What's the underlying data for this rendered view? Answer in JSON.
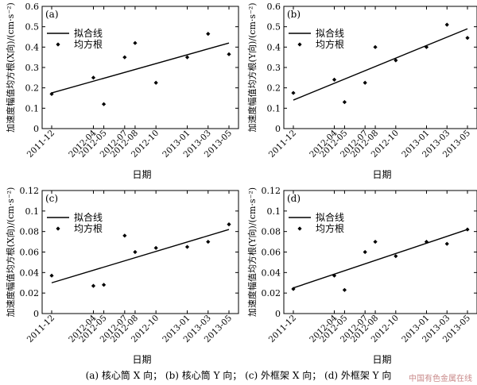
{
  "caption": "(a) 核心筒 X 向； (b) 核心筒 Y 向； (c) 外框架 X 向； (d) 外框架 Y 向",
  "watermark": "中国有色金属在线",
  "colors": {
    "axis": "#000000",
    "marker": "#000000",
    "line": "#000000"
  },
  "chart_data": [
    {
      "panel": "(a)",
      "type": "scatter",
      "xlabel": "日期",
      "ylabel": "加速度幅值均方根(X向)/(cm·s⁻²)",
      "x_categories": [
        "2011-12",
        "2012-04",
        "2012-05",
        "2012-07",
        "2012-08",
        "2012-10",
        "2013-01",
        "2013-03",
        "2013-05"
      ],
      "ylim": [
        0,
        0.6
      ],
      "yticks": [
        0,
        0.1,
        0.2,
        0.3,
        0.4,
        0.5,
        0.6
      ],
      "series": [
        {
          "name": "均方根",
          "kind": "points",
          "values": [
            0.17,
            0.25,
            0.12,
            0.35,
            0.42,
            0.225,
            0.35,
            0.465,
            0.365
          ]
        },
        {
          "name": "拟合线",
          "kind": "fit",
          "start": 0.175,
          "end": 0.42
        }
      ],
      "legend": "top-left"
    },
    {
      "panel": "(b)",
      "type": "scatter",
      "xlabel": "日期",
      "ylabel": "加速度幅值均方根(Y向)/(cm·s⁻²)",
      "x_categories": [
        "2011-12",
        "2012-04",
        "2012-05",
        "2012-07",
        "2012-08",
        "2012-10",
        "2013-01",
        "2013-03",
        "2013-05"
      ],
      "ylim": [
        0,
        0.6
      ],
      "yticks": [
        0,
        0.1,
        0.2,
        0.3,
        0.4,
        0.5,
        0.6
      ],
      "series": [
        {
          "name": "均方根",
          "kind": "points",
          "values": [
            0.175,
            0.24,
            0.13,
            0.225,
            0.4,
            0.335,
            0.4,
            0.51,
            0.445
          ]
        },
        {
          "name": "拟合线",
          "kind": "fit",
          "start": 0.14,
          "end": 0.49
        }
      ],
      "legend": "top-left"
    },
    {
      "panel": "(c)",
      "type": "scatter",
      "xlabel": "日期",
      "ylabel": "加速度幅值均方根(X向)/(cm·s⁻²)",
      "x_categories": [
        "2011-12",
        "2012-04",
        "2012-05",
        "2012-07",
        "2012-08",
        "2012-10",
        "2013-01",
        "2013-03",
        "2013-05"
      ],
      "ylim": [
        0,
        0.12
      ],
      "yticks": [
        0,
        0.02,
        0.04,
        0.06,
        0.08,
        0.1,
        0.12
      ],
      "series": [
        {
          "name": "均方根",
          "kind": "points",
          "values": [
            0.037,
            0.027,
            0.028,
            0.076,
            0.06,
            0.064,
            0.065,
            0.07,
            0.087
          ]
        },
        {
          "name": "拟合线",
          "kind": "fit",
          "start": 0.03,
          "end": 0.082
        }
      ],
      "legend": "top-left"
    },
    {
      "panel": "(d)",
      "type": "scatter",
      "xlabel": "日期",
      "ylabel": "加速度幅值均方根(Y向)/(cm·s⁻²)",
      "x_categories": [
        "2011-12",
        "2012-04",
        "2012-05",
        "2012-07",
        "2012-08",
        "2012-10",
        "2013-01",
        "2013-03",
        "2013-05"
      ],
      "ylim": [
        0,
        0.12
      ],
      "yticks": [
        0,
        0.02,
        0.04,
        0.06,
        0.08,
        0.1,
        0.12
      ],
      "series": [
        {
          "name": "均方根",
          "kind": "points",
          "values": [
            0.024,
            0.037,
            0.023,
            0.06,
            0.07,
            0.056,
            0.07,
            0.068,
            0.082
          ]
        },
        {
          "name": "拟合线",
          "kind": "fit",
          "start": 0.025,
          "end": 0.082
        }
      ],
      "legend": "top-left"
    }
  ]
}
